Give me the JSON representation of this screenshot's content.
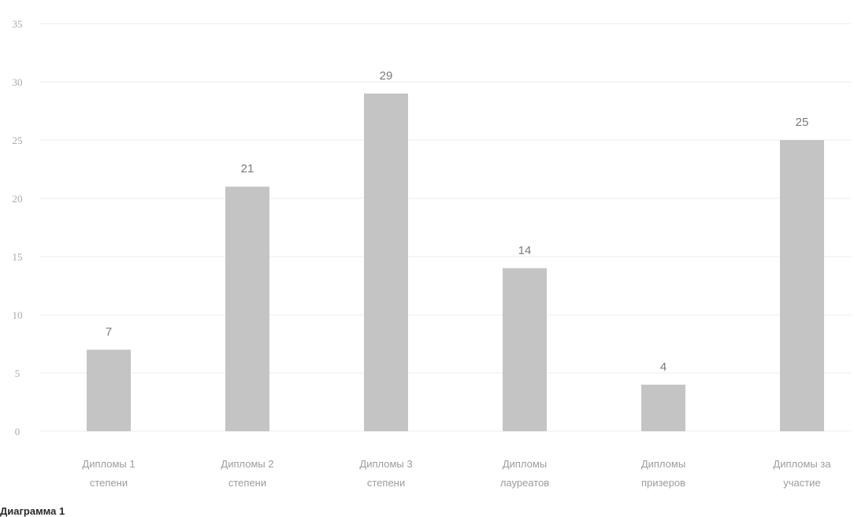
{
  "chart_data": {
    "type": "bar",
    "title": "",
    "xlabel": "",
    "ylabel": "",
    "ylim": [
      0,
      35
    ],
    "yticks": [
      0,
      5,
      10,
      15,
      20,
      25,
      30,
      35
    ],
    "grid": true,
    "legend": "none",
    "categories": [
      [
        "Дипломы 1",
        "степени"
      ],
      [
        "Дипломы 2",
        "степени"
      ],
      [
        "Дипломы 3",
        "степени"
      ],
      [
        "Дипломы",
        "лауреатов"
      ],
      [
        "Дипломы",
        "призеров"
      ],
      [
        "Дипломы за",
        "участие"
      ]
    ],
    "values": [
      7,
      21,
      29,
      14,
      4,
      25
    ],
    "bar_color": "#c4c4c4"
  },
  "caption": {
    "text": "Диаграмма 1"
  }
}
